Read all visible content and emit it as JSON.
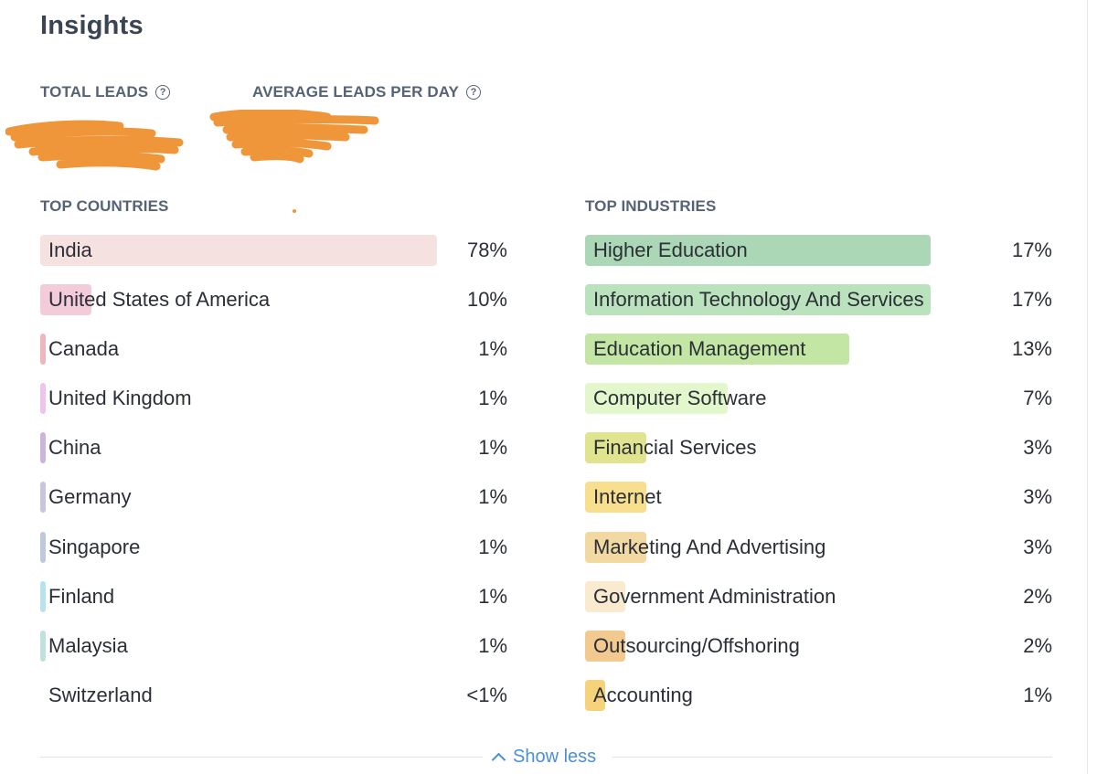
{
  "title": "Insights",
  "stats": {
    "total_leads_label": "TOTAL LEADS",
    "avg_leads_label": "AVERAGE LEADS PER DAY"
  },
  "countries": {
    "heading": "TOP COUNTRIES",
    "items": [
      {
        "name": "India",
        "value": "78%",
        "share": 78,
        "color": "#f6e1e1"
      },
      {
        "name": "United States of America",
        "value": "10%",
        "share": 10,
        "color": "#f3cbd9"
      },
      {
        "name": "Canada",
        "value": "1%",
        "share": 1,
        "color": "#f0b6bd"
      },
      {
        "name": "United Kingdom",
        "value": "1%",
        "share": 1,
        "color": "#efc4ec"
      },
      {
        "name": "China",
        "value": "1%",
        "share": 1,
        "color": "#cbb5d8"
      },
      {
        "name": "Germany",
        "value": "1%",
        "share": 1,
        "color": "#c7c6dc"
      },
      {
        "name": "Singapore",
        "value": "1%",
        "share": 1,
        "color": "#bfc9de"
      },
      {
        "name": "Finland",
        "value": "1%",
        "share": 1,
        "color": "#b9e3ec"
      },
      {
        "name": "Malaysia",
        "value": "1%",
        "share": 1,
        "color": "#bfe2dc"
      },
      {
        "name": "Switzerland",
        "value": "<1%",
        "share": 0,
        "color": "#ffffff"
      }
    ]
  },
  "industries": {
    "heading": "TOP INDUSTRIES",
    "items": [
      {
        "name": "Higher Education",
        "value": "17%",
        "share": 17,
        "color": "#abd7b7"
      },
      {
        "name": "Information Technology And Services",
        "value": "17%",
        "share": 17,
        "color": "#b9e2bd"
      },
      {
        "name": "Education Management",
        "value": "13%",
        "share": 13,
        "color": "#c4e6a4"
      },
      {
        "name": "Computer Software",
        "value": "7%",
        "share": 7,
        "color": "#e3f7cc"
      },
      {
        "name": "Financial Services",
        "value": "3%",
        "share": 3,
        "color": "#e1e48f"
      },
      {
        "name": "Internet",
        "value": "3%",
        "share": 3,
        "color": "#f8df8e"
      },
      {
        "name": "Marketing And Advertising",
        "value": "3%",
        "share": 3,
        "color": "#f2d9a2"
      },
      {
        "name": "Government Administration",
        "value": "2%",
        "share": 2,
        "color": "#f9ead0"
      },
      {
        "name": "Outsourcing/Offshoring",
        "value": "2%",
        "share": 2,
        "color": "#f2c98f"
      },
      {
        "name": "Accounting",
        "value": "1%",
        "share": 1,
        "color": "#f6d27a"
      }
    ]
  },
  "footer": {
    "show_less_label": "Show less"
  },
  "colors": {
    "accent": "#4a8fd9",
    "redaction": "#f0963a"
  }
}
